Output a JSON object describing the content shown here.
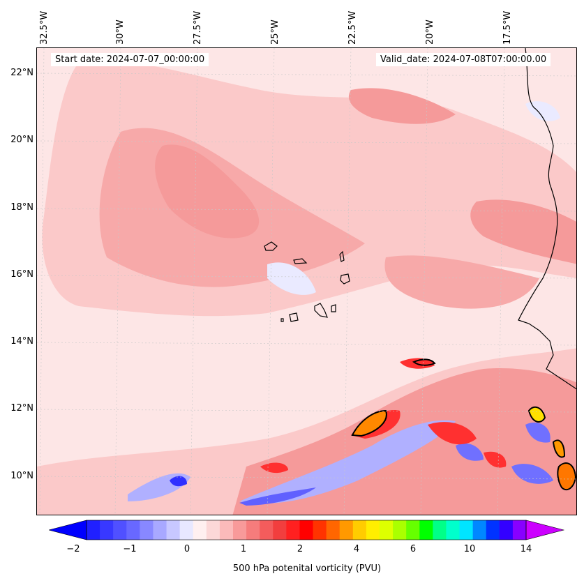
{
  "header": {
    "start_date": "Start date: 2024-07-07_00:00:00",
    "valid_date": "Valid_date: 2024-07-08T07:00:00.00"
  },
  "longitude_labels": [
    "32.5°W",
    "30°W",
    "27.5°W",
    "25°W",
    "22.5°W",
    "20°W",
    "17.5°W"
  ],
  "latitude_labels": [
    "22°N",
    "20°N",
    "18°N",
    "16°N",
    "14°N",
    "12°N",
    "10°N"
  ],
  "colorbar": {
    "title": "500 hPa potenital vorticity (PVU)",
    "tick_labels": [
      "−2",
      "−1",
      "0",
      "1",
      "2",
      "4",
      "6",
      "10",
      "14"
    ],
    "extend": "both"
  },
  "colors": {
    "background_field": "#fde6e6",
    "coastline": "#000000",
    "gridline": "#c8c8c8"
  }
}
